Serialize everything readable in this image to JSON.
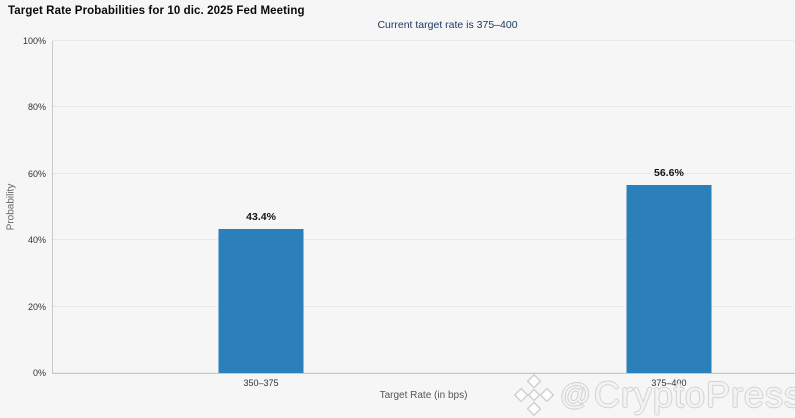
{
  "chart": {
    "title": "Target Rate Probabilities for 10 dic. 2025 Fed Meeting",
    "subtitle": "Current target rate is 375–400",
    "ylabel": "Probability",
    "xlabel": "Target Rate (in bps)"
  },
  "watermark": {
    "at_symbol": "@",
    "text": "CryptoPress",
    "icon": "binance-diamond-icon"
  },
  "colors": {
    "background": "#f6f6f7",
    "bar": "#2b80b9",
    "subtitle_text": "#1f3a63",
    "gridline": "#dcdcdc",
    "axis_line": "#c9c9c9"
  },
  "chart_data": {
    "type": "bar",
    "title": "Target Rate Probabilities for 10 dic. 2025 Fed Meeting",
    "subtitle": "Current target rate is 375–400",
    "categories": [
      "350–375",
      "375–400"
    ],
    "values": [
      43.4,
      56.6
    ],
    "value_labels": [
      "43.4%",
      "56.6%"
    ],
    "xlabel": "Target Rate (in bps)",
    "ylabel": "Probability",
    "ylim": [
      0,
      100
    ],
    "yticks": [
      "0%",
      "20%",
      "40%",
      "60%",
      "80%",
      "100%"
    ],
    "ytick_values": [
      0,
      20,
      40,
      60,
      80,
      100
    ],
    "grid": "horizontal-dotted",
    "legend": "none",
    "bar_color": "#2b80b9"
  }
}
